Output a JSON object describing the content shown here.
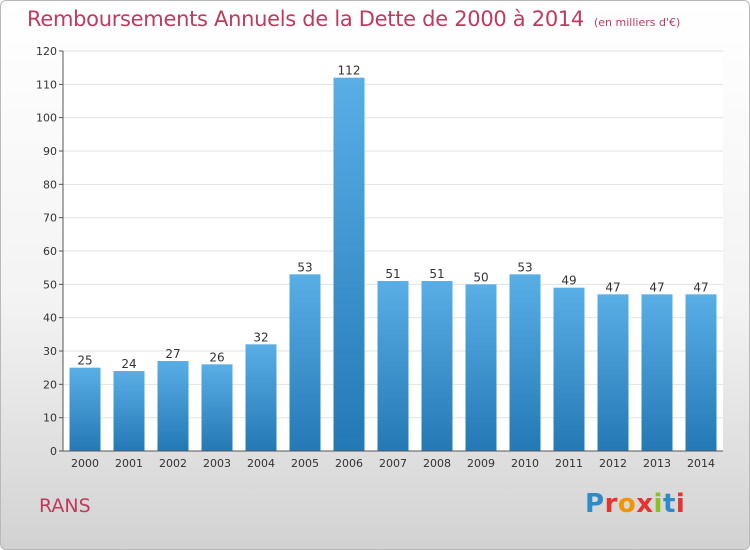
{
  "header": {
    "title": "Remboursements Annuels de la Dette de 2000 à 2014",
    "unit": "(en milliers d'€)"
  },
  "footer": {
    "commune": "RANS",
    "logo_text": "Proxiti",
    "logo_colors": [
      "#2e8bc9",
      "#e8322e",
      "#f29400",
      "#e8322e",
      "#8dc021",
      "#2e8bc9",
      "#e8322e"
    ]
  },
  "colors": {
    "accent": "#c03a5e",
    "bar_top": "#5aaee6",
    "bar_bottom": "#2479b5"
  },
  "chart_data": {
    "type": "bar",
    "title": "Remboursements Annuels de la Dette de 2000 à 2014",
    "categories": [
      "2000",
      "2001",
      "2002",
      "2003",
      "2004",
      "2005",
      "2006",
      "2007",
      "2008",
      "2009",
      "2010",
      "2011",
      "2012",
      "2013",
      "2014"
    ],
    "values": [
      25,
      24,
      27,
      26,
      32,
      53,
      112,
      51,
      51,
      50,
      53,
      49,
      47,
      47,
      47
    ],
    "ylim": [
      0,
      120
    ],
    "yticks": [
      0,
      10,
      20,
      30,
      40,
      50,
      60,
      70,
      80,
      90,
      100,
      110,
      120
    ],
    "grid": true,
    "legend": "none"
  }
}
